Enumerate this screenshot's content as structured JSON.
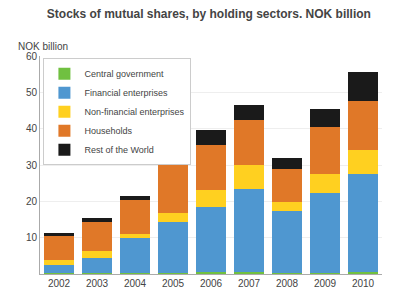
{
  "chart_data": {
    "type": "bar",
    "stacked": true,
    "title": "Stocks of mutual shares, by holding sectors. NOK billion",
    "ylabel": "NOK billion",
    "categories": [
      "2002",
      "2003",
      "2004",
      "2005",
      "2006",
      "2007",
      "2008",
      "2009",
      "2010"
    ],
    "series": [
      {
        "name": "Central government",
        "color": "#70c040",
        "values": [
          0.4,
          0.4,
          0.4,
          0.4,
          0.5,
          0.5,
          0.4,
          0.4,
          0.5
        ]
      },
      {
        "name": "Financial enterprises",
        "color": "#4f97d0",
        "values": [
          2.0,
          4.0,
          9.5,
          14.0,
          18.0,
          23.0,
          17.0,
          22.0,
          27.0
        ]
      },
      {
        "name": "Non-financial enterprises",
        "color": "#ffd020",
        "values": [
          1.5,
          2.0,
          1.0,
          2.5,
          4.5,
          6.5,
          2.5,
          5.0,
          6.5
        ]
      },
      {
        "name": "Households",
        "color": "#e07828",
        "values": [
          6.5,
          8.0,
          9.5,
          13.5,
          12.5,
          12.5,
          9.0,
          13.0,
          13.5
        ]
      },
      {
        "name": "Rest of the World",
        "color": "#1a1a1a",
        "values": [
          1.0,
          1.0,
          1.0,
          1.5,
          4.0,
          4.0,
          3.0,
          5.0,
          8.0
        ]
      }
    ],
    "ylim": [
      0,
      60
    ],
    "yticks": [
      10,
      20,
      30,
      40,
      50,
      60
    ],
    "grid": true,
    "legend": "upper left"
  }
}
